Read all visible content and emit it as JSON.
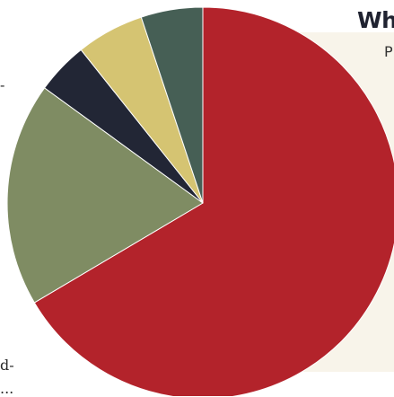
{
  "header": {
    "title": "Wh",
    "subtitle": "P"
  },
  "left_text": {
    "line1": "-",
    "line2": "d-",
    "line3": "..."
  },
  "chart_data": {
    "type": "pie",
    "start_angle_deg": 0,
    "direction": "clockwise",
    "legend": "none",
    "slices": [
      {
        "value": 66.5,
        "color": "#b3232b"
      },
      {
        "value": 18.5,
        "color": "#7f8c63"
      },
      {
        "value": 4.3,
        "color": "#222635"
      },
      {
        "value": 5.6,
        "color": "#d5c472"
      },
      {
        "value": 5.1,
        "color": "#465f55"
      }
    ]
  }
}
